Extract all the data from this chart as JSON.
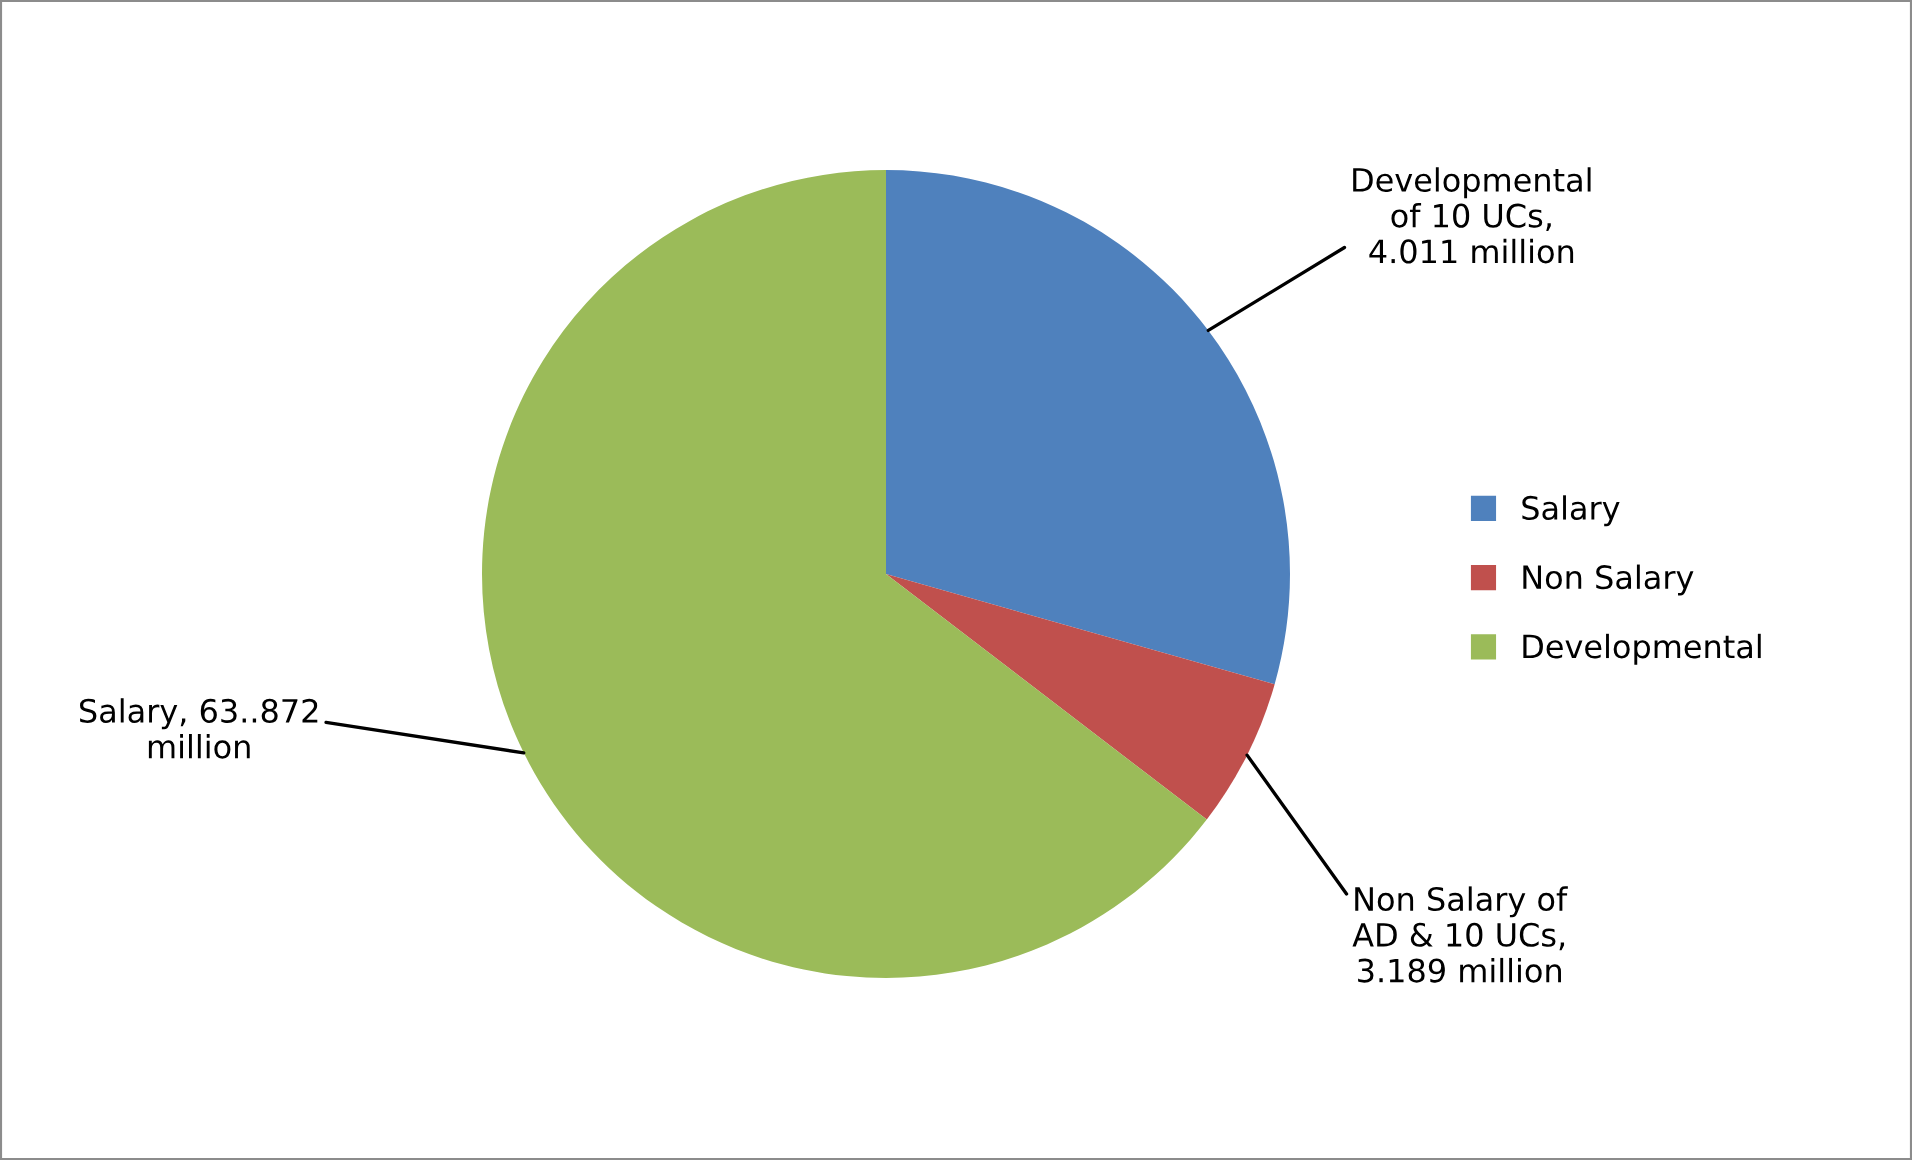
{
  "chart_data": {
    "type": "pie",
    "categories": [
      "Salary",
      "Non Salary",
      "Developmental"
    ],
    "values": [
      29.4,
      6.0,
      64.6
    ],
    "colors": [
      "#4f81bd",
      "#c0504d",
      "#9bbb59"
    ],
    "legend": "right",
    "annotations": [
      "Developmental\nof 10 UCs,\n4.011 million",
      "Non Salary of\nAD & 10 UCs,\n3.189 million",
      "Salary, 63..872\nmillion"
    ]
  }
}
